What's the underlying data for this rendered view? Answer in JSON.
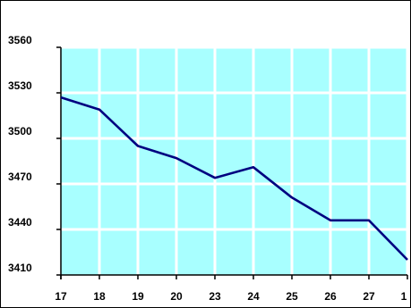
{
  "chart_data": {
    "type": "line",
    "title": "",
    "xlabel": "",
    "ylabel": "",
    "categories": [
      "17",
      "18",
      "19",
      "20",
      "23",
      "24",
      "25",
      "26",
      "27",
      "1"
    ],
    "series": [
      {
        "values": [
          3527,
          3519,
          3495,
          3487,
          3474,
          3481,
          3461,
          3446,
          3446,
          3420
        ]
      }
    ],
    "ylim": [
      3410,
      3560
    ],
    "yticks": [
      3410,
      3440,
      3470,
      3500,
      3530,
      3560
    ],
    "grid": true,
    "legend": "none",
    "colors": {
      "plot_background": "#A8FFFF",
      "grid": "#FFFFFF",
      "line": "#000080",
      "axis": "#000000"
    }
  }
}
